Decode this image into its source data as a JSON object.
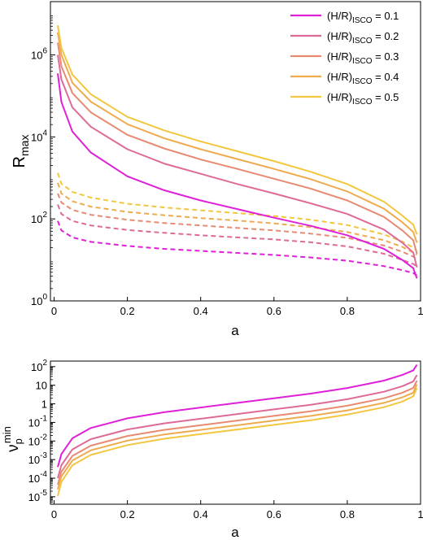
{
  "chart_data": [
    {
      "type": "line",
      "x_label": "a",
      "y_label_main": "R",
      "y_label_sub": "max",
      "y_scale": "log",
      "xlim": [
        -0.01,
        1.0
      ],
      "ylim_exp": [
        0,
        7.3
      ],
      "x_ticks": [
        "0",
        "0.2",
        "0.4",
        "0.6",
        "0.8",
        "1"
      ],
      "x_tick_values": [
        0,
        0.2,
        0.4,
        0.6,
        0.8,
        1.0
      ],
      "y_ticks": [
        {
          "base": "10",
          "exp": "0",
          "value_exp": 0
        },
        {
          "base": "10",
          "exp": "2",
          "value_exp": 2
        },
        {
          "base": "10",
          "exp": "4",
          "value_exp": 4
        },
        {
          "base": "10",
          "exp": "6",
          "value_exp": 6
        }
      ],
      "legend_position": "top-right",
      "legend": [
        {
          "prefix": "(H/R)",
          "sub": "ISCO",
          "suffix": " = 0.1",
          "color": "#e020d8"
        },
        {
          "prefix": "(H/R)",
          "sub": "ISCO",
          "suffix": " = 0.2",
          "color": "#de6a98"
        },
        {
          "prefix": "(H/R)",
          "sub": "ISCO",
          "suffix": " = 0.3",
          "color": "#e88a72"
        },
        {
          "prefix": "(H/R)",
          "sub": "ISCO",
          "suffix": " = 0.4",
          "color": "#f0aa4e"
        },
        {
          "prefix": "(H/R)",
          "sub": "ISCO",
          "suffix": " = 0.5",
          "color": "#f2c63e"
        }
      ],
      "x": [
        0.01,
        0.02,
        0.05,
        0.1,
        0.2,
        0.3,
        0.4,
        0.5,
        0.6,
        0.7,
        0.8,
        0.9,
        0.95,
        0.98,
        0.99
      ],
      "series_solid": [
        {
          "color": "#e020d8",
          "log10_values": [
            5.55,
            4.85,
            4.13,
            3.62,
            3.04,
            2.7,
            2.45,
            2.24,
            2.03,
            1.83,
            1.6,
            1.27,
            1.0,
            0.8,
            0.55
          ]
        },
        {
          "color": "#de6a98",
          "log10_values": [
            6.0,
            5.4,
            4.72,
            4.25,
            3.7,
            3.35,
            3.1,
            2.85,
            2.62,
            2.38,
            2.12,
            1.74,
            1.42,
            1.18,
            0.82
          ]
        },
        {
          "color": "#e88a72",
          "log10_values": [
            6.3,
            5.72,
            5.07,
            4.6,
            4.05,
            3.72,
            3.45,
            3.22,
            2.98,
            2.74,
            2.45,
            2.05,
            1.72,
            1.48,
            1.15
          ]
        },
        {
          "color": "#f0aa4e",
          "log10_values": [
            6.55,
            6.0,
            5.32,
            4.86,
            4.31,
            3.97,
            3.7,
            3.46,
            3.22,
            2.97,
            2.67,
            2.25,
            1.92,
            1.68,
            1.42
          ]
        },
        {
          "color": "#f2c63e",
          "log10_values": [
            6.72,
            6.17,
            5.52,
            5.04,
            4.49,
            4.16,
            3.89,
            3.65,
            3.41,
            3.15,
            2.85,
            2.42,
            2.08,
            1.86,
            1.62
          ]
        }
      ],
      "series_dashed": [
        {
          "color": "#e020d8",
          "log10_values": [
            1.95,
            1.72,
            1.55,
            1.44,
            1.34,
            1.27,
            1.22,
            1.17,
            1.12,
            1.06,
            0.98,
            0.85,
            0.75,
            0.68,
            0.62
          ]
        },
        {
          "color": "#de6a98",
          "log10_values": [
            2.35,
            2.12,
            1.95,
            1.84,
            1.73,
            1.66,
            1.6,
            1.55,
            1.5,
            1.43,
            1.33,
            1.15,
            1.0,
            0.9,
            0.85
          ]
        },
        {
          "color": "#e88a72",
          "log10_values": [
            2.62,
            2.4,
            2.22,
            2.1,
            1.98,
            1.9,
            1.84,
            1.78,
            1.72,
            1.64,
            1.54,
            1.35,
            1.2,
            1.08,
            1.02
          ]
        },
        {
          "color": "#f0aa4e",
          "log10_values": [
            2.88,
            2.62,
            2.43,
            2.3,
            2.17,
            2.09,
            2.02,
            1.96,
            1.89,
            1.8,
            1.68,
            1.48,
            1.32,
            1.18,
            1.12
          ]
        },
        {
          "color": "#f2c63e",
          "log10_values": [
            3.12,
            2.86,
            2.66,
            2.52,
            2.37,
            2.28,
            2.21,
            2.14,
            2.07,
            1.98,
            1.85,
            1.62,
            1.45,
            1.3,
            1.22
          ]
        }
      ]
    },
    {
      "type": "line",
      "x_label": "a",
      "y_label_main": "ν",
      "y_label_sub": "p",
      "y_label_sup": "min",
      "y_scale": "log",
      "xlim": [
        -0.01,
        1.0
      ],
      "ylim_exp": [
        -5.4,
        2.3
      ],
      "x_ticks": [
        "0",
        "0.2",
        "0.4",
        "0.6",
        "0.8",
        "1"
      ],
      "x_tick_values": [
        0,
        0.2,
        0.4,
        0.6,
        0.8,
        1.0
      ],
      "y_ticks": [
        {
          "base": "10",
          "exp": "-5",
          "value_exp": -5
        },
        {
          "base": "10",
          "exp": "-4",
          "value_exp": -4
        },
        {
          "base": "10",
          "exp": "-3",
          "value_exp": -3
        },
        {
          "base": "10",
          "exp": "-2",
          "value_exp": -2
        },
        {
          "base": "10",
          "exp": "-1",
          "value_exp": -1
        },
        {
          "base": "1",
          "exp": "",
          "value_exp": 0
        },
        {
          "base": "10",
          "exp": "",
          "value_exp": 1
        },
        {
          "base": "10",
          "exp": "2",
          "value_exp": 2
        }
      ],
      "x": [
        0.01,
        0.02,
        0.05,
        0.1,
        0.2,
        0.3,
        0.4,
        0.5,
        0.6,
        0.7,
        0.8,
        0.9,
        0.95,
        0.98,
        0.99
      ],
      "series": [
        {
          "color": "#e020d8",
          "log10_values": [
            -3.4,
            -2.7,
            -1.85,
            -1.3,
            -0.78,
            -0.45,
            -0.2,
            0.05,
            0.3,
            0.55,
            0.85,
            1.25,
            1.55,
            1.8,
            2.1
          ]
        },
        {
          "color": "#de6a98",
          "log10_values": [
            -4.0,
            -3.3,
            -2.45,
            -1.9,
            -1.38,
            -1.05,
            -0.8,
            -0.55,
            -0.3,
            -0.05,
            0.25,
            0.65,
            0.95,
            1.2,
            1.55
          ]
        },
        {
          "color": "#e88a72",
          "log10_values": [
            -4.35,
            -3.65,
            -2.8,
            -2.25,
            -1.73,
            -1.4,
            -1.15,
            -0.9,
            -0.65,
            -0.4,
            -0.1,
            0.3,
            0.6,
            0.85,
            1.25
          ]
        },
        {
          "color": "#f0aa4e",
          "log10_values": [
            -4.6,
            -3.9,
            -3.05,
            -2.5,
            -1.98,
            -1.65,
            -1.4,
            -1.15,
            -0.9,
            -0.65,
            -0.35,
            0.05,
            0.35,
            0.6,
            1.05
          ]
        },
        {
          "color": "#f2c63e",
          "log10_values": [
            -4.95,
            -4.2,
            -3.3,
            -2.75,
            -2.22,
            -1.88,
            -1.63,
            -1.38,
            -1.13,
            -0.88,
            -0.58,
            -0.18,
            0.12,
            0.4,
            0.85
          ]
        }
      ]
    }
  ]
}
